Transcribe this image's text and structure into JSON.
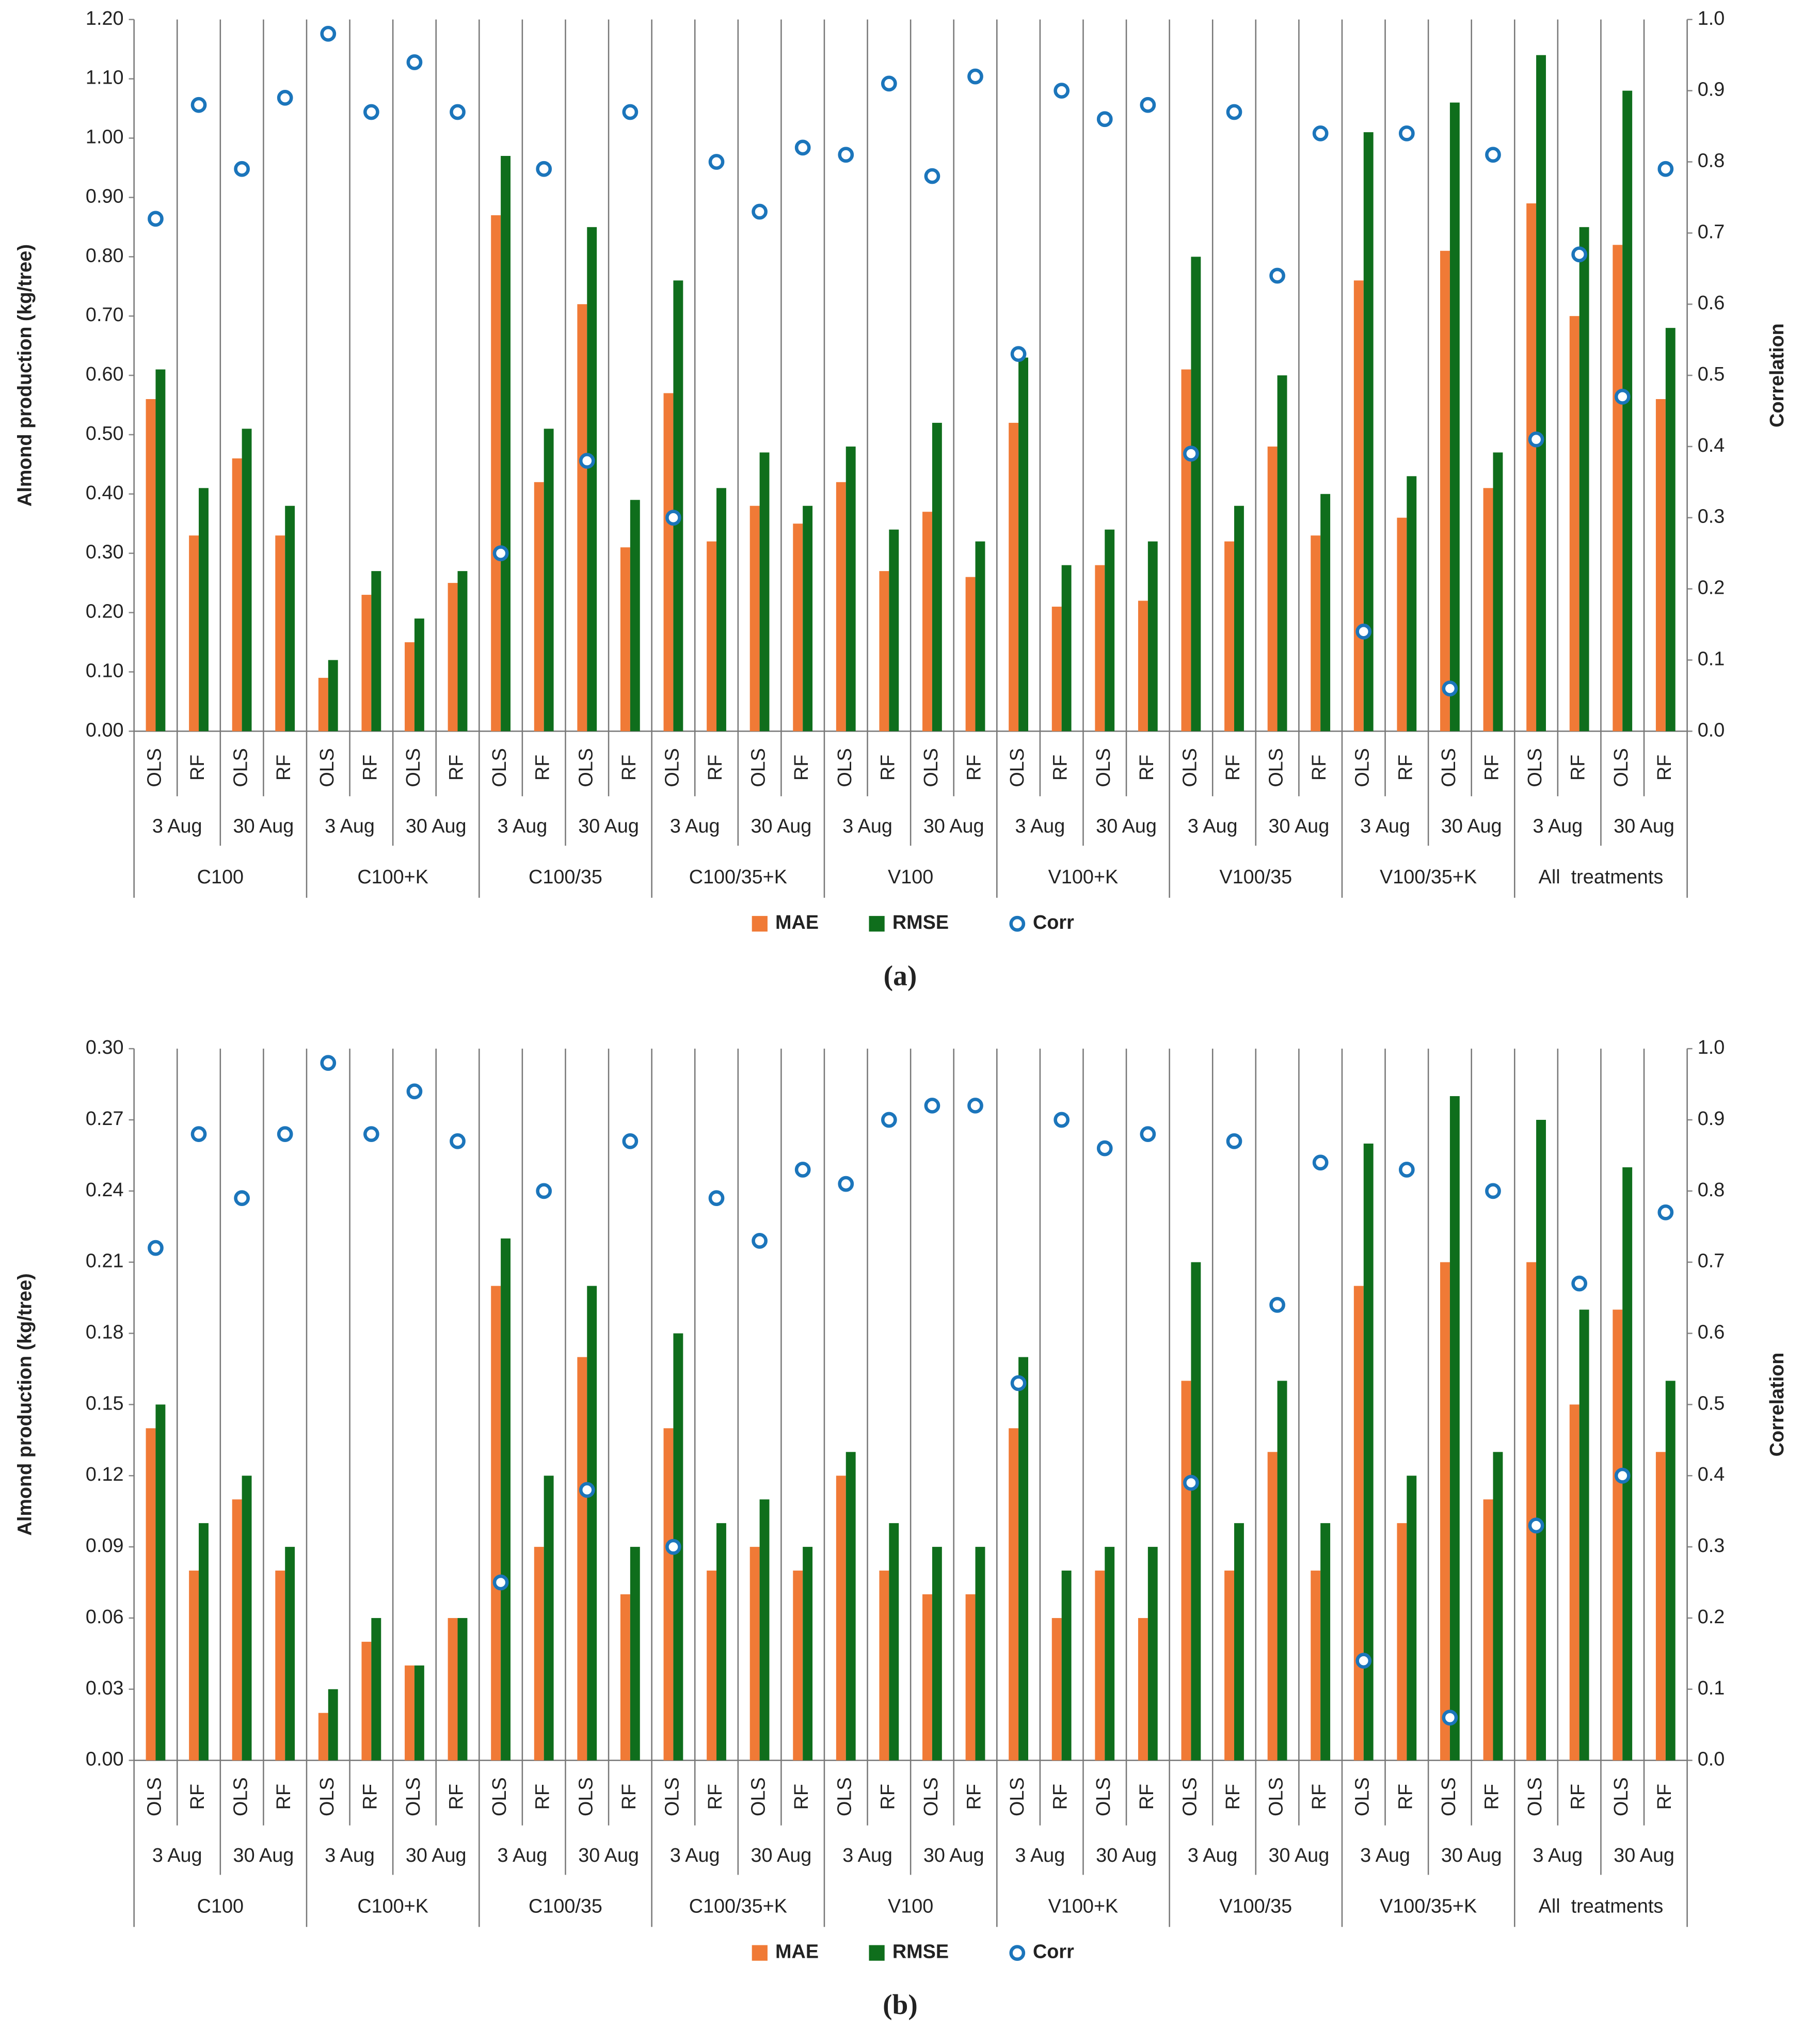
{
  "chart_data": [
    {
      "type": "bar",
      "caption": "(a)",
      "y_label": "Almond production (kg/tree)",
      "y2_label": "Correlation",
      "categories": [
        "OLS",
        "RF",
        "OLS",
        "RF",
        "OLS",
        "RF",
        "OLS",
        "RF",
        "OLS",
        "RF",
        "OLS",
        "RF",
        "OLS",
        "RF",
        "OLS",
        "RF",
        "OLS",
        "RF",
        "OLS",
        "RF",
        "OLS",
        "RF",
        "OLS",
        "RF",
        "OLS",
        "RF",
        "OLS",
        "RF",
        "OLS",
        "RF",
        "OLS",
        "RF",
        "OLS",
        "RF",
        "OLS",
        "RF"
      ],
      "date_labels": [
        "3 Aug",
        "30 Aug",
        "3 Aug",
        "30 Aug",
        "3 Aug",
        "30 Aug",
        "3 Aug",
        "30 Aug",
        "3 Aug",
        "30 Aug",
        "3 Aug",
        "30 Aug",
        "3 Aug",
        "30 Aug",
        "3 Aug",
        "30 Aug",
        "3 Aug",
        "30 Aug"
      ],
      "group_labels": [
        "C100",
        "C100+K",
        "C100/35",
        "C100/35+K",
        "V100",
        "V100+K",
        "V100/35",
        "V100/35+K",
        "All  treatments"
      ],
      "series": [
        {
          "name": "MAE",
          "type": "bar",
          "color": "#f07a36",
          "values": [
            0.56,
            0.33,
            0.46,
            0.33,
            0.09,
            0.23,
            0.15,
            0.25,
            0.87,
            0.42,
            0.72,
            0.31,
            0.57,
            0.32,
            0.38,
            0.35,
            0.42,
            0.27,
            0.37,
            0.26,
            0.52,
            0.21,
            0.28,
            0.22,
            0.61,
            0.32,
            0.48,
            0.33,
            0.76,
            0.36,
            0.81,
            0.41,
            0.89,
            0.7,
            0.82,
            0.56
          ]
        },
        {
          "name": "RMSE",
          "type": "bar",
          "color": "#0f6e1c",
          "values": [
            0.61,
            0.41,
            0.51,
            0.38,
            0.12,
            0.27,
            0.19,
            0.27,
            0.97,
            0.51,
            0.85,
            0.39,
            0.76,
            0.41,
            0.47,
            0.38,
            0.48,
            0.34,
            0.52,
            0.32,
            0.63,
            0.28,
            0.34,
            0.32,
            0.8,
            0.38,
            0.6,
            0.4,
            1.01,
            0.43,
            1.06,
            0.47,
            1.14,
            0.85,
            1.08,
            0.68
          ]
        },
        {
          "name": "Corr",
          "type": "scatter",
          "axis": "y2",
          "color": "#1b75bb",
          "values": [
            0.72,
            0.88,
            0.79,
            0.89,
            0.98,
            0.87,
            0.94,
            0.87,
            0.25,
            0.79,
            0.38,
            0.87,
            0.3,
            0.8,
            0.73,
            0.82,
            0.81,
            0.91,
            0.78,
            0.92,
            0.53,
            0.9,
            0.86,
            0.88,
            0.39,
            0.87,
            0.64,
            0.84,
            0.14,
            0.84,
            0.06,
            0.81,
            0.41,
            0.67,
            0.47,
            0.79
          ]
        }
      ],
      "ylim": [
        0,
        1.2
      ],
      "yticks": [
        {
          "value": 0,
          "label": "0.00"
        },
        {
          "value": 0.1,
          "label": "0.10"
        },
        {
          "value": 0.2,
          "label": "0.20"
        },
        {
          "value": 0.3,
          "label": "0.30"
        },
        {
          "value": 0.4,
          "label": "0.40"
        },
        {
          "value": 0.5,
          "label": "0.50"
        },
        {
          "value": 0.6,
          "label": "0.60"
        },
        {
          "value": 0.7,
          "label": "0.70"
        },
        {
          "value": 0.8,
          "label": "0.80"
        },
        {
          "value": 0.9,
          "label": "0.90"
        },
        {
          "value": 1.0,
          "label": "1.00"
        },
        {
          "value": 1.1,
          "label": "1.10"
        },
        {
          "value": 1.2,
          "label": "1.20"
        }
      ],
      "y2lim": [
        0,
        1
      ],
      "y2ticks": [
        {
          "value": 0,
          "label": "0.0"
        },
        0.1,
        0.2,
        0.3,
        0.4,
        0.5,
        0.6,
        0.7,
        0.8,
        0.9,
        {
          "value": 1,
          "label": "1.0"
        }
      ],
      "grid": false
    },
    {
      "type": "bar",
      "caption": "(b)",
      "y_label": "Almond production (kg/tree)",
      "y2_label": "Correlation",
      "categories": [
        "OLS",
        "RF",
        "OLS",
        "RF",
        "OLS",
        "RF",
        "OLS",
        "RF",
        "OLS",
        "RF",
        "OLS",
        "RF",
        "OLS",
        "RF",
        "OLS",
        "RF",
        "OLS",
        "RF",
        "OLS",
        "RF",
        "OLS",
        "RF",
        "OLS",
        "RF",
        "OLS",
        "RF",
        "OLS",
        "RF",
        "OLS",
        "RF",
        "OLS",
        "RF",
        "OLS",
        "RF",
        "OLS",
        "RF"
      ],
      "date_labels": [
        "3 Aug",
        "30 Aug",
        "3 Aug",
        "30 Aug",
        "3 Aug",
        "30 Aug",
        "3 Aug",
        "30 Aug",
        "3 Aug",
        "30 Aug",
        "3 Aug",
        "30 Aug",
        "3 Aug",
        "30 Aug",
        "3 Aug",
        "30 Aug",
        "3 Aug",
        "30 Aug"
      ],
      "group_labels": [
        "C100",
        "C100+K",
        "C100/35",
        "C100/35+K",
        "V100",
        "V100+K",
        "V100/35",
        "V100/35+K",
        "All  treatments"
      ],
      "series": [
        {
          "name": "MAE",
          "type": "bar",
          "color": "#f07a36",
          "values": [
            0.14,
            0.08,
            0.11,
            0.08,
            0.02,
            0.05,
            0.04,
            0.06,
            0.2,
            0.09,
            0.17,
            0.07,
            0.14,
            0.08,
            0.09,
            0.08,
            0.12,
            0.08,
            0.07,
            0.07,
            0.14,
            0.06,
            0.08,
            0.06,
            0.16,
            0.08,
            0.13,
            0.08,
            0.2,
            0.1,
            0.21,
            0.11,
            0.21,
            0.15,
            0.19,
            0.13
          ]
        },
        {
          "name": "RMSE",
          "type": "bar",
          "color": "#0f6e1c",
          "values": [
            0.15,
            0.1,
            0.12,
            0.09,
            0.03,
            0.06,
            0.04,
            0.06,
            0.22,
            0.12,
            0.2,
            0.09,
            0.18,
            0.1,
            0.11,
            0.09,
            0.13,
            0.1,
            0.09,
            0.09,
            0.17,
            0.08,
            0.09,
            0.09,
            0.21,
            0.1,
            0.16,
            0.1,
            0.26,
            0.12,
            0.28,
            0.13,
            0.27,
            0.19,
            0.25,
            0.16
          ]
        },
        {
          "name": "Corr",
          "type": "scatter",
          "axis": "y2",
          "color": "#1b75bb",
          "values": [
            0.72,
            0.88,
            0.79,
            0.88,
            0.98,
            0.88,
            0.94,
            0.87,
            0.25,
            0.8,
            0.38,
            0.87,
            0.3,
            0.79,
            0.73,
            0.83,
            0.81,
            0.9,
            0.92,
            0.92,
            0.53,
            0.9,
            0.86,
            0.88,
            0.39,
            0.87,
            0.64,
            0.84,
            0.14,
            0.83,
            0.06,
            0.8,
            0.33,
            0.67,
            0.4,
            0.77
          ]
        }
      ],
      "ylim": [
        0,
        0.3
      ],
      "yticks": [
        {
          "value": 0,
          "label": "0.00"
        },
        0.03,
        0.06,
        0.09,
        0.12,
        0.15,
        0.18,
        0.21,
        0.24,
        0.27,
        {
          "value": 0.3,
          "label": "0.30"
        }
      ],
      "y2lim": [
        0,
        1
      ],
      "y2ticks": [
        {
          "value": 0,
          "label": "0.0"
        },
        0.1,
        0.2,
        0.3,
        0.4,
        0.5,
        0.6,
        0.7,
        0.8,
        0.9,
        {
          "value": 1,
          "label": "1.0"
        }
      ],
      "grid": false
    }
  ]
}
